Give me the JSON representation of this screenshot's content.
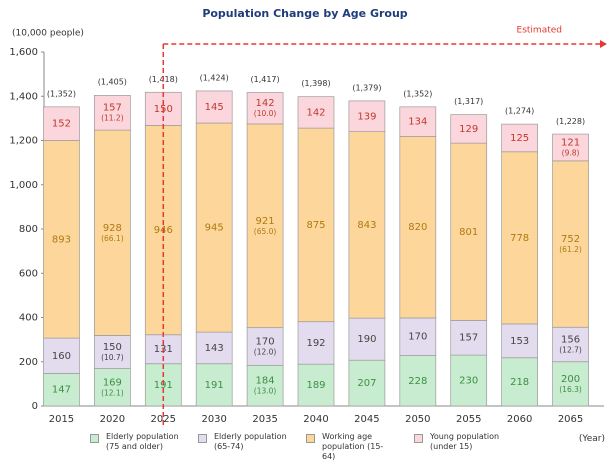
{
  "chart_data": {
    "type": "stacked_bar",
    "title": "Population Change by Age Group",
    "y_label": "(10,000 people)",
    "x_label": "(Year)",
    "categories": [
      "2015",
      "2020",
      "2025",
      "2030",
      "2035",
      "2040",
      "2045",
      "2050",
      "2055",
      "2060",
      "2065"
    ],
    "series": [
      {
        "name": "Elderly population (75 and older)",
        "color": "#c8eccf",
        "text_color": "#3c8f45",
        "values": [
          147,
          169,
          191,
          191,
          184,
          189,
          207,
          228,
          230,
          218,
          200
        ],
        "share_labels": [
          null,
          "(12.1)",
          null,
          null,
          "(13.0)",
          null,
          null,
          null,
          null,
          null,
          "(16.3)"
        ]
      },
      {
        "name": "Elderly population (65-74)",
        "color": "#e3dcef",
        "text_color": "#444444",
        "values": [
          160,
          150,
          131,
          143,
          170,
          192,
          190,
          170,
          157,
          153,
          156
        ],
        "share_labels": [
          null,
          "(10.7)",
          null,
          null,
          "(12.0)",
          null,
          null,
          null,
          null,
          null,
          "(12.7)"
        ]
      },
      {
        "name": "Working age population (15-64)",
        "color": "#fdd69c",
        "text_color": "#b07a10",
        "values": [
          893,
          928,
          946,
          945,
          921,
          875,
          843,
          820,
          801,
          778,
          752
        ],
        "share_labels": [
          null,
          "(66.1)",
          null,
          null,
          "(65.0)",
          null,
          null,
          null,
          null,
          null,
          "(61.2)"
        ]
      },
      {
        "name": "Young population (under 15)",
        "color": "#fcd6dd",
        "text_color": "#c0392b",
        "values": [
          152,
          157,
          150,
          145,
          142,
          142,
          139,
          134,
          129,
          125,
          121
        ],
        "share_labels": [
          null,
          "(11.2)",
          null,
          null,
          "(10.0)",
          null,
          null,
          null,
          null,
          null,
          "(9.8)"
        ]
      }
    ],
    "totals": {
      "values": [
        1352,
        1405,
        1418,
        1424,
        1417,
        1398,
        1379,
        1352,
        1317,
        1274,
        1228
      ],
      "value_labels": [
        "(1,352)",
        "(1,405)",
        "(1,418)",
        "(1,424)",
        "(1,417)",
        "(1,398)",
        "(1,379)",
        "(1,352)",
        "(1,317)",
        "(1,274)",
        "(1,228)"
      ]
    },
    "estimate": {
      "text": "Estimated",
      "from": "2025",
      "color": "#e53935"
    },
    "ylim": [
      0,
      1600
    ],
    "yticks": [
      0,
      200,
      400,
      600,
      800,
      {
        "value": 1000,
        "label": "1,000"
      },
      {
        "value": 1200,
        "label": "1,200"
      },
      {
        "value": 1400,
        "label": "1,400"
      },
      {
        "value": 1600,
        "label": "1,600"
      }
    ],
    "grid": false
  }
}
